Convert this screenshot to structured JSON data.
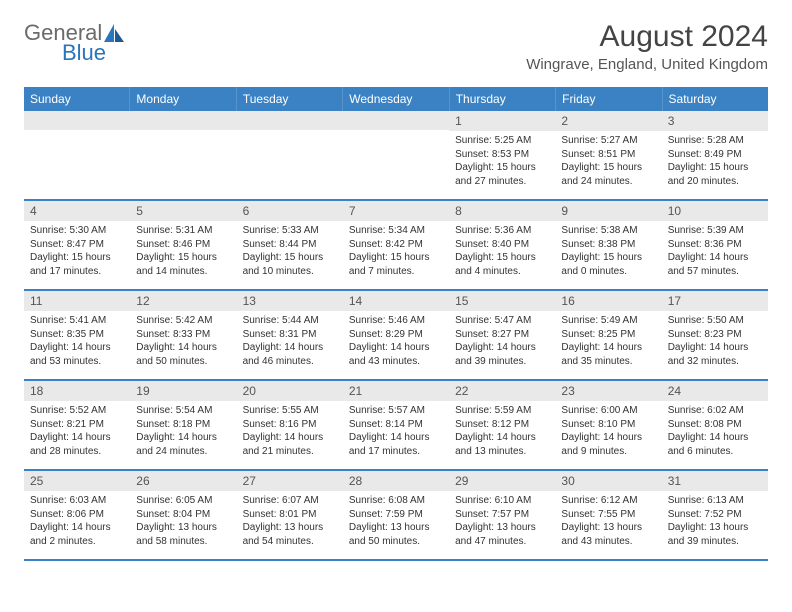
{
  "logo": {
    "part1": "General",
    "part2": "Blue"
  },
  "title": "August 2024",
  "location": "Wingrave, England, United Kingdom",
  "dayHeaders": [
    "Sunday",
    "Monday",
    "Tuesday",
    "Wednesday",
    "Thursday",
    "Friday",
    "Saturday"
  ],
  "headerBg": "#3b82c4",
  "grayBg": "#e9e9e9",
  "weeks": [
    [
      null,
      null,
      null,
      null,
      {
        "n": "1",
        "sr": "Sunrise: 5:25 AM",
        "ss": "Sunset: 8:53 PM",
        "d1": "Daylight: 15 hours",
        "d2": "and 27 minutes."
      },
      {
        "n": "2",
        "sr": "Sunrise: 5:27 AM",
        "ss": "Sunset: 8:51 PM",
        "d1": "Daylight: 15 hours",
        "d2": "and 24 minutes."
      },
      {
        "n": "3",
        "sr": "Sunrise: 5:28 AM",
        "ss": "Sunset: 8:49 PM",
        "d1": "Daylight: 15 hours",
        "d2": "and 20 minutes."
      }
    ],
    [
      {
        "n": "4",
        "sr": "Sunrise: 5:30 AM",
        "ss": "Sunset: 8:47 PM",
        "d1": "Daylight: 15 hours",
        "d2": "and 17 minutes."
      },
      {
        "n": "5",
        "sr": "Sunrise: 5:31 AM",
        "ss": "Sunset: 8:46 PM",
        "d1": "Daylight: 15 hours",
        "d2": "and 14 minutes."
      },
      {
        "n": "6",
        "sr": "Sunrise: 5:33 AM",
        "ss": "Sunset: 8:44 PM",
        "d1": "Daylight: 15 hours",
        "d2": "and 10 minutes."
      },
      {
        "n": "7",
        "sr": "Sunrise: 5:34 AM",
        "ss": "Sunset: 8:42 PM",
        "d1": "Daylight: 15 hours",
        "d2": "and 7 minutes."
      },
      {
        "n": "8",
        "sr": "Sunrise: 5:36 AM",
        "ss": "Sunset: 8:40 PM",
        "d1": "Daylight: 15 hours",
        "d2": "and 4 minutes."
      },
      {
        "n": "9",
        "sr": "Sunrise: 5:38 AM",
        "ss": "Sunset: 8:38 PM",
        "d1": "Daylight: 15 hours",
        "d2": "and 0 minutes."
      },
      {
        "n": "10",
        "sr": "Sunrise: 5:39 AM",
        "ss": "Sunset: 8:36 PM",
        "d1": "Daylight: 14 hours",
        "d2": "and 57 minutes."
      }
    ],
    [
      {
        "n": "11",
        "sr": "Sunrise: 5:41 AM",
        "ss": "Sunset: 8:35 PM",
        "d1": "Daylight: 14 hours",
        "d2": "and 53 minutes."
      },
      {
        "n": "12",
        "sr": "Sunrise: 5:42 AM",
        "ss": "Sunset: 8:33 PM",
        "d1": "Daylight: 14 hours",
        "d2": "and 50 minutes."
      },
      {
        "n": "13",
        "sr": "Sunrise: 5:44 AM",
        "ss": "Sunset: 8:31 PM",
        "d1": "Daylight: 14 hours",
        "d2": "and 46 minutes."
      },
      {
        "n": "14",
        "sr": "Sunrise: 5:46 AM",
        "ss": "Sunset: 8:29 PM",
        "d1": "Daylight: 14 hours",
        "d2": "and 43 minutes."
      },
      {
        "n": "15",
        "sr": "Sunrise: 5:47 AM",
        "ss": "Sunset: 8:27 PM",
        "d1": "Daylight: 14 hours",
        "d2": "and 39 minutes."
      },
      {
        "n": "16",
        "sr": "Sunrise: 5:49 AM",
        "ss": "Sunset: 8:25 PM",
        "d1": "Daylight: 14 hours",
        "d2": "and 35 minutes."
      },
      {
        "n": "17",
        "sr": "Sunrise: 5:50 AM",
        "ss": "Sunset: 8:23 PM",
        "d1": "Daylight: 14 hours",
        "d2": "and 32 minutes."
      }
    ],
    [
      {
        "n": "18",
        "sr": "Sunrise: 5:52 AM",
        "ss": "Sunset: 8:21 PM",
        "d1": "Daylight: 14 hours",
        "d2": "and 28 minutes."
      },
      {
        "n": "19",
        "sr": "Sunrise: 5:54 AM",
        "ss": "Sunset: 8:18 PM",
        "d1": "Daylight: 14 hours",
        "d2": "and 24 minutes."
      },
      {
        "n": "20",
        "sr": "Sunrise: 5:55 AM",
        "ss": "Sunset: 8:16 PM",
        "d1": "Daylight: 14 hours",
        "d2": "and 21 minutes."
      },
      {
        "n": "21",
        "sr": "Sunrise: 5:57 AM",
        "ss": "Sunset: 8:14 PM",
        "d1": "Daylight: 14 hours",
        "d2": "and 17 minutes."
      },
      {
        "n": "22",
        "sr": "Sunrise: 5:59 AM",
        "ss": "Sunset: 8:12 PM",
        "d1": "Daylight: 14 hours",
        "d2": "and 13 minutes."
      },
      {
        "n": "23",
        "sr": "Sunrise: 6:00 AM",
        "ss": "Sunset: 8:10 PM",
        "d1": "Daylight: 14 hours",
        "d2": "and 9 minutes."
      },
      {
        "n": "24",
        "sr": "Sunrise: 6:02 AM",
        "ss": "Sunset: 8:08 PM",
        "d1": "Daylight: 14 hours",
        "d2": "and 6 minutes."
      }
    ],
    [
      {
        "n": "25",
        "sr": "Sunrise: 6:03 AM",
        "ss": "Sunset: 8:06 PM",
        "d1": "Daylight: 14 hours",
        "d2": "and 2 minutes."
      },
      {
        "n": "26",
        "sr": "Sunrise: 6:05 AM",
        "ss": "Sunset: 8:04 PM",
        "d1": "Daylight: 13 hours",
        "d2": "and 58 minutes."
      },
      {
        "n": "27",
        "sr": "Sunrise: 6:07 AM",
        "ss": "Sunset: 8:01 PM",
        "d1": "Daylight: 13 hours",
        "d2": "and 54 minutes."
      },
      {
        "n": "28",
        "sr": "Sunrise: 6:08 AM",
        "ss": "Sunset: 7:59 PM",
        "d1": "Daylight: 13 hours",
        "d2": "and 50 minutes."
      },
      {
        "n": "29",
        "sr": "Sunrise: 6:10 AM",
        "ss": "Sunset: 7:57 PM",
        "d1": "Daylight: 13 hours",
        "d2": "and 47 minutes."
      },
      {
        "n": "30",
        "sr": "Sunrise: 6:12 AM",
        "ss": "Sunset: 7:55 PM",
        "d1": "Daylight: 13 hours",
        "d2": "and 43 minutes."
      },
      {
        "n": "31",
        "sr": "Sunrise: 6:13 AM",
        "ss": "Sunset: 7:52 PM",
        "d1": "Daylight: 13 hours",
        "d2": "and 39 minutes."
      }
    ]
  ]
}
